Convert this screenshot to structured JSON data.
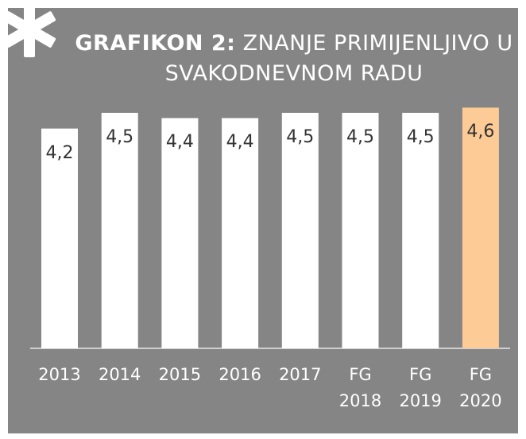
{
  "chart_data": {
    "type": "bar",
    "title_prefix": "GRAFIKON 2:",
    "title": "ZNANJE PRIMIJENLJIVO U SVAKODNEVNOM RADU",
    "categories": [
      "2013",
      "2014",
      "2015",
      "2016",
      "2017",
      "FG 2018",
      "FG 2019",
      "FG 2020"
    ],
    "values": [
      4.2,
      4.5,
      4.4,
      4.4,
      4.5,
      4.5,
      4.5,
      4.6
    ],
    "value_labels": [
      "4,2",
      "4,5",
      "4,4",
      "4,4",
      "4,5",
      "4,5",
      "4,5",
      "4,6"
    ],
    "colors": [
      "#ffffff",
      "#ffffff",
      "#ffffff",
      "#ffffff",
      "#ffffff",
      "#ffffff",
      "#ffffff",
      "#fccb96"
    ],
    "ylim": [
      0,
      5
    ]
  }
}
